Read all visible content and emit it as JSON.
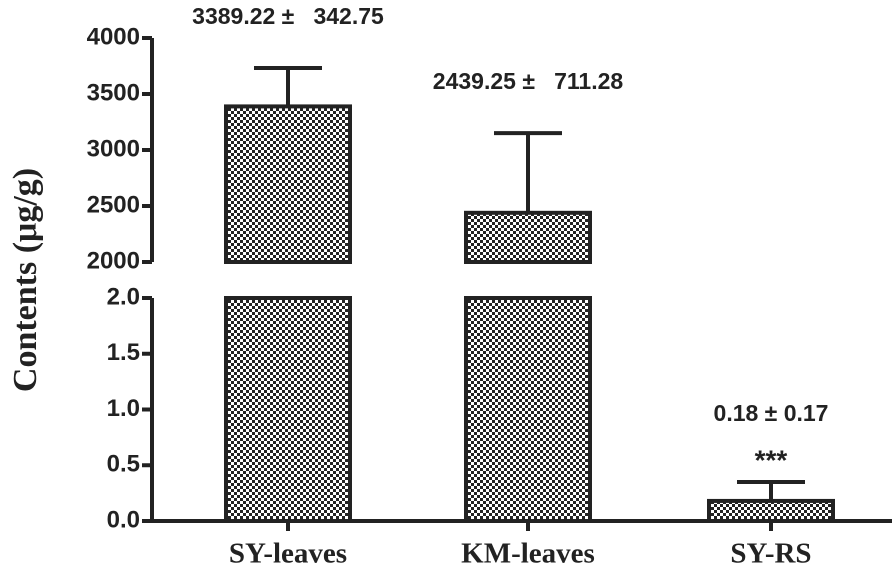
{
  "chart_data": {
    "type": "bar",
    "y_label": "Contents (μg/g)",
    "categories": [
      "SY-leaves",
      "KM-leaves",
      "SY-RS"
    ],
    "values": [
      3389.22,
      2439.25,
      0.18
    ],
    "errors": [
      342.75,
      711.28,
      0.17
    ],
    "value_labels": [
      "3389.22 ±   342.75",
      "2439.25 ±   711.28",
      "0.18 ± 0.17"
    ],
    "significance": [
      null,
      null,
      "***"
    ],
    "y_segments": [
      {
        "ylim": [
          0,
          2
        ],
        "yticks": [
          {
            "value": 0,
            "label": "0.0"
          },
          0.5,
          {
            "value": 1,
            "label": "1.0"
          },
          1.5,
          {
            "value": 2,
            "label": "2.0"
          }
        ]
      },
      {
        "ylim": [
          2000,
          4000
        ],
        "yticks": [
          2000,
          2500,
          3000,
          3500,
          4000
        ]
      }
    ]
  }
}
